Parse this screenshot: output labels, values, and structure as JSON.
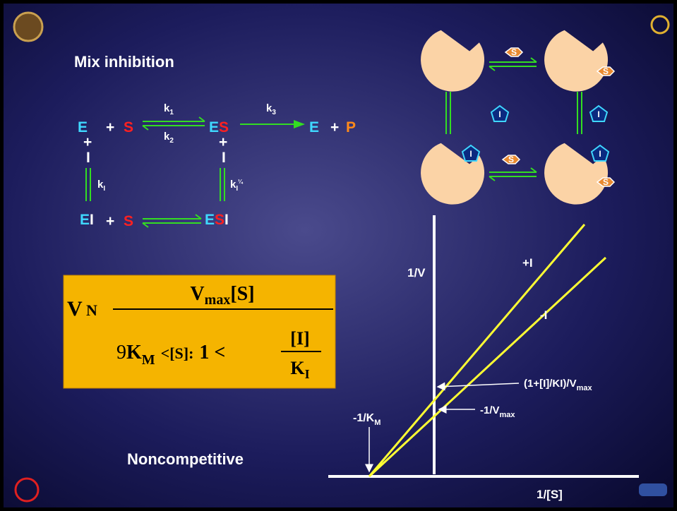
{
  "title": "Mix inhibition",
  "scheme": {
    "E": "E",
    "S": "S",
    "P": "P",
    "I": "I",
    "plus": "+",
    "k1": {
      "base": "k",
      "sub": "1"
    },
    "k2": {
      "base": "k",
      "sub": "2"
    },
    "k3": {
      "base": "k",
      "sub": "3"
    },
    "kI": {
      "base": "k",
      "sub": "I"
    },
    "kI_prime": {
      "base": "k",
      "sub": "I",
      "sup": "¼"
    }
  },
  "formula": {
    "lhs": "V",
    "equals": "N",
    "numerator": {
      "base": "V",
      "sub": "max",
      "rest": "[S]"
    },
    "denominator": {
      "open": "9",
      "km": {
        "base": "K",
        "sub": "M"
      },
      "middle": "<[S]:",
      "one": "1 <",
      "inner_num": "[I]",
      "inner_den": {
        "base": "K",
        "sub": "I"
      }
    }
  },
  "enzyme_diagram": {
    "substrate": "S",
    "inhibitor": "I"
  },
  "graph": {
    "y_axis": "1/V",
    "x_axis": "1/[S]",
    "line_plus": "+I",
    "line_minus": "-I",
    "y_intercept_inhibited": {
      "base": "(1+[I]/KI)/V",
      "sub": "max"
    },
    "y_intercept": {
      "base": "-1/V",
      "sub": "max"
    },
    "x_intercept": {
      "base": "-1/K",
      "sub": "M"
    }
  },
  "footer": "Noncompetitive"
}
